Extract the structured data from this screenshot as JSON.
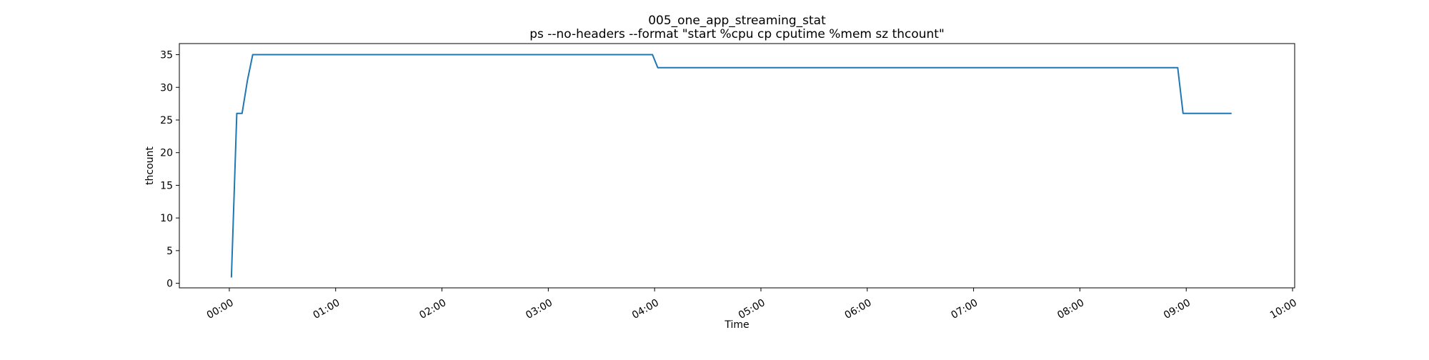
{
  "chart_data": {
    "type": "line",
    "title": "005_one_app_streaming_stat",
    "subtitle": "ps --no-headers --format \"start %cpu cp cputime %mem sz thcount\"",
    "xlabel": "Time",
    "ylabel": "thcount",
    "x_unit": "hours",
    "xlim": [
      -0.47,
      10.02
    ],
    "ylim": [
      -0.7,
      36.7
    ],
    "x_ticks": [
      {
        "value": 0,
        "label": "00:00"
      },
      {
        "value": 1,
        "label": "01:00"
      },
      {
        "value": 2,
        "label": "02:00"
      },
      {
        "value": 3,
        "label": "03:00"
      },
      {
        "value": 4,
        "label": "04:00"
      },
      {
        "value": 5,
        "label": "05:00"
      },
      {
        "value": 6,
        "label": "06:00"
      },
      {
        "value": 7,
        "label": "07:00"
      },
      {
        "value": 8,
        "label": "08:00"
      },
      {
        "value": 9,
        "label": "09:00"
      },
      {
        "value": 10,
        "label": "10:00"
      }
    ],
    "y_ticks": [
      0,
      5,
      10,
      15,
      20,
      25,
      30,
      35
    ],
    "grid": false,
    "legend": "none",
    "series": [
      {
        "color": "#1f77b4",
        "x": [
          0.02,
          0.07,
          0.12,
          0.17,
          0.22,
          3.98,
          4.03,
          8.92,
          8.97,
          9.42
        ],
        "y": [
          1,
          26,
          26,
          31,
          35,
          35,
          33,
          33,
          26,
          26
        ]
      }
    ]
  }
}
